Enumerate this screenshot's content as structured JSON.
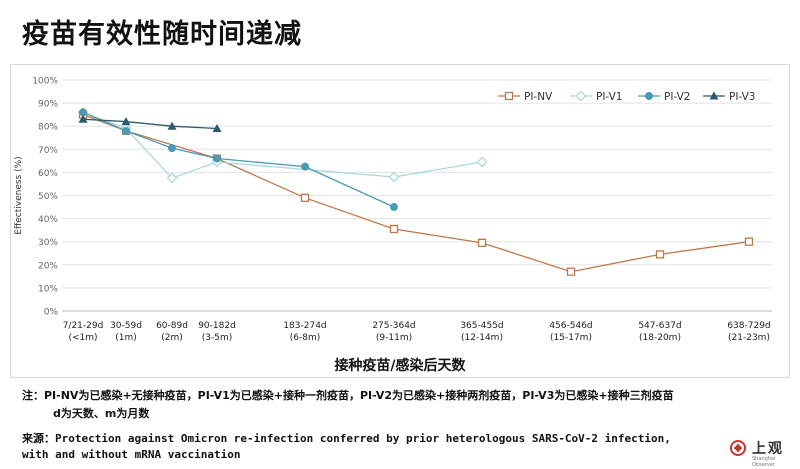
{
  "title": "疫苗有效性随时间递减",
  "x_axis_title": "接种疫苗/感染后天数",
  "note_line1": "注：PI-NV为已感染+无接种疫苗，PI-V1为已感染+接种一剂疫苗，PI-V2为已感染+接种两剂疫苗，PI-V3为已感染+接种三剂疫苗",
  "note_line2": "d为天数、m为月数",
  "source_label": "来源：",
  "source_line1": "Protection against Omicron re-infection conferred by prior heterologous SARS-CoV-2 infection,",
  "source_line2": "with and without mRNA vaccination",
  "logo_text": "上观",
  "logo_sub": "Shanghai Observer",
  "colors": {
    "PI-NV": "#c0784a",
    "PI-V1": "#a8d8d8",
    "PI-V2": "#4a9bb5",
    "PI-V3": "#2e5a6a"
  },
  "chart_data": {
    "type": "line",
    "ylabel": "Effectiveness (%)",
    "ylim": [
      0,
      100
    ],
    "yticks": [
      "0%",
      "10%",
      "20%",
      "30%",
      "40%",
      "50%",
      "60%",
      "70%",
      "80%",
      "90%",
      "100%"
    ],
    "grid": "horizontal",
    "legend_position": "top-right",
    "categories": [
      [
        "7/21-29d",
        "(<1m)"
      ],
      [
        "30-59d",
        "(1m)"
      ],
      [
        "60-89d",
        "(2m)"
      ],
      [
        "90-182d",
        "(3-5m)"
      ],
      [
        "183-274d",
        "(6-8m)"
      ],
      [
        "275-364d",
        "(9-11m)"
      ],
      [
        "365-455d",
        "(12-14m)"
      ],
      [
        "456-546d",
        "(15-17m)"
      ],
      [
        "547-637d",
        "(18-20m)"
      ],
      [
        "638-729d",
        "(21-23m)"
      ]
    ],
    "series": [
      {
        "name": "PI-NV",
        "marker": "square-open",
        "values": [
          85,
          78,
          null,
          66,
          49,
          35.5,
          29.5,
          17,
          24.5,
          30
        ]
      },
      {
        "name": "PI-V1",
        "marker": "diamond-open",
        "values": [
          86,
          79,
          57.5,
          64.5,
          null,
          58,
          64.5,
          null,
          null,
          null
        ]
      },
      {
        "name": "PI-V2",
        "marker": "circle",
        "values": [
          86,
          78,
          70.5,
          66,
          62.5,
          45,
          null,
          null,
          null,
          null
        ]
      },
      {
        "name": "PI-V3",
        "marker": "triangle",
        "values": [
          83,
          82,
          80,
          79,
          null,
          null,
          null,
          null,
          null,
          null
        ]
      }
    ]
  }
}
